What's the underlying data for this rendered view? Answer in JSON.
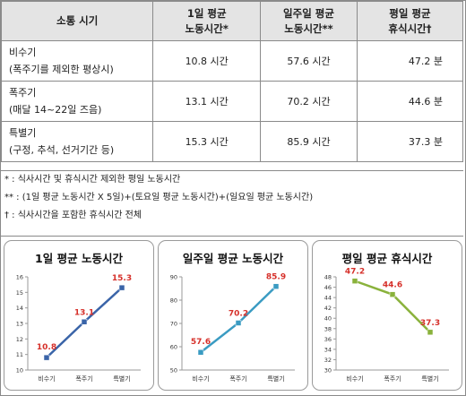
{
  "table": {
    "headers": [
      "소통 시기",
      "1일 평균",
      "노동시간*",
      "일주일 평균",
      "노동시간**",
      "평일 평균",
      "휴식시간†"
    ],
    "rows": [
      {
        "period": "비수기",
        "detail": "(폭주기를 제외한 평상시)",
        "daily": "10.8 시간",
        "weekly": "57.6 시간",
        "rest": "47.2 분"
      },
      {
        "period": "폭주기",
        "detail": "(매달 14~22일 즈음)",
        "daily": "13.1 시간",
        "weekly": "70.2 시간",
        "rest": "44.6 분"
      },
      {
        "period": "특별기",
        "detail": "(구정, 추석, 선거기간 등)",
        "daily": "15.3 시간",
        "weekly": "85.9 시간",
        "rest": "37.3 분"
      }
    ]
  },
  "notes": [
    "* : 식사시간 및 휴식시간 제외한 평일 노동시간",
    "** : (1일 평균 노동시간 X 5일)+(토요일 평균 노동시간)+(일요일 평균 노동시간)",
    "† : 식사시간을 포함한 휴식시간 전체"
  ],
  "chart_data": [
    {
      "type": "line",
      "title": "1일 평균 노동시간",
      "categories": [
        "비수기",
        "폭주기",
        "특별기"
      ],
      "values": [
        10.8,
        13.1,
        15.3
      ],
      "ylim": [
        10,
        16
      ],
      "yticks": [
        10,
        11,
        12,
        13,
        14,
        15,
        16
      ],
      "color": "#3a64a8",
      "label_color": "#d6302a",
      "grid": false
    },
    {
      "type": "line",
      "title": "일주일 평균 노동시간",
      "categories": [
        "비수기",
        "폭주기",
        "특별기"
      ],
      "values": [
        57.6,
        70.2,
        85.9
      ],
      "ylim": [
        50,
        90
      ],
      "yticks": [
        50,
        60,
        70,
        80,
        90
      ],
      "color": "#3a9bc2",
      "label_color": "#d6302a",
      "grid": false
    },
    {
      "type": "line",
      "title": "평일 평균 휴식시간",
      "categories": [
        "비수기",
        "폭주기",
        "특별기"
      ],
      "values": [
        47.2,
        44.6,
        37.3
      ],
      "ylim": [
        30,
        48
      ],
      "yticks": [
        30,
        32,
        34,
        36,
        38,
        40,
        42,
        44,
        46,
        48
      ],
      "color": "#8ab23c",
      "label_color": "#d6302a",
      "grid": false
    }
  ]
}
